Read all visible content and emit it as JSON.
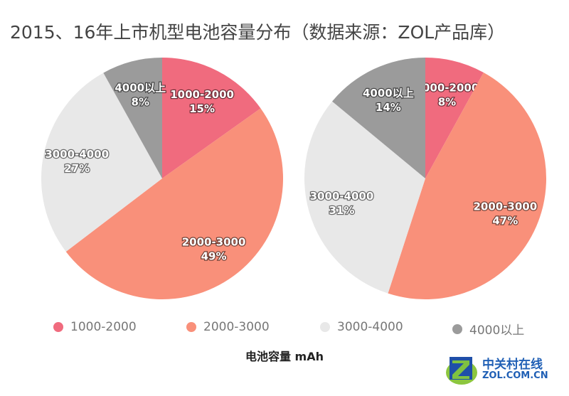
{
  "title": "2015、16年上市机型电池容量分布（数据来源：ZOL产品库）",
  "chart_data": [
    {
      "type": "pie",
      "name": "2015",
      "categories": [
        "1000-2000",
        "2000-3000",
        "3000-4000",
        "4000以上"
      ],
      "values": [
        15,
        49,
        27,
        8
      ],
      "labels": [
        "15%",
        "49%",
        "27%",
        "8%"
      ]
    },
    {
      "type": "pie",
      "name": "2016",
      "categories": [
        "1000-2000",
        "2000-3000",
        "3000-4000",
        "4000以上"
      ],
      "values": [
        8,
        47,
        31,
        14
      ],
      "labels": [
        "8%",
        "47%",
        "31%",
        "14%"
      ]
    }
  ],
  "colors": [
    "#F06B7E",
    "#F9907A",
    "#E8E8E8",
    "#9B9B9B"
  ],
  "legend": [
    "1000-2000",
    "2000-3000",
    "3000-4000",
    "4000以上"
  ],
  "xlabel": "电池容量 mAh",
  "logo": {
    "cn": "中关村在线",
    "en": "ZOL.COM.CN"
  }
}
